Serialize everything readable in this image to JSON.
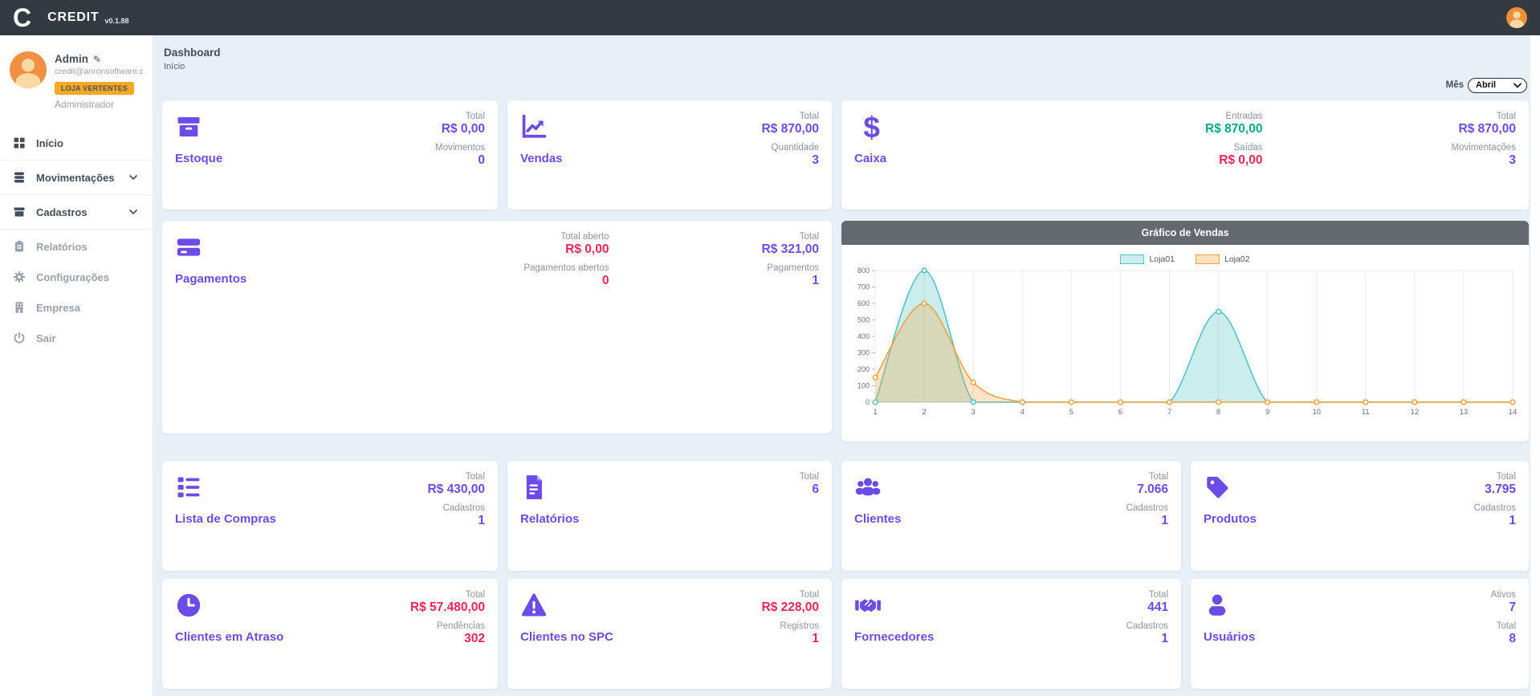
{
  "colors": {
    "accent": "#6b4ce6",
    "green": "#00ab84",
    "red": "#ee2757",
    "topbar": "#343a42",
    "badge": "#f7a825",
    "chart-header": "#63696f"
  },
  "topbar": {
    "logo": "C",
    "brand": "CREDIT",
    "version": "v0.1.88"
  },
  "sidebar": {
    "user": {
      "name": "Admin",
      "email": "credit@anronsoftware.co...",
      "badge": "LOJA VERTENTES",
      "role": "Administrador"
    },
    "menu": [
      {
        "label": "Início",
        "icon": "grid-icon"
      },
      {
        "label": "Movimentações",
        "icon": "database-icon",
        "chevron": true
      },
      {
        "label": "Cadastros",
        "icon": "archive-icon",
        "chevron": true
      },
      {
        "label": "Relatórios",
        "icon": "clipboard-icon"
      },
      {
        "label": "Configurações",
        "icon": "gear-icon"
      },
      {
        "label": "Empresa",
        "icon": "building-icon"
      },
      {
        "label": "Sair",
        "icon": "power-icon"
      }
    ]
  },
  "header": {
    "title": "Dashboard",
    "breadcrumb": "Início",
    "month_label": "Mês",
    "month_value": "Abril"
  },
  "cards": {
    "estoque": {
      "title": "Estoque",
      "icon": "box-icon",
      "stats": [
        {
          "label": "Total",
          "value": "R$ 0,00",
          "tone": "purple"
        },
        {
          "label": "Movimentos",
          "value": "0",
          "tone": "purple"
        }
      ]
    },
    "vendas": {
      "title": "Vendas",
      "icon": "chart-line-icon",
      "stats": [
        {
          "label": "Total",
          "value": "R$ 870,00",
          "tone": "purple"
        },
        {
          "label": "Quantidade",
          "value": "3",
          "tone": "purple"
        }
      ]
    },
    "caixa": {
      "title": "Caixa",
      "icon": "dollar-icon",
      "col1": [
        {
          "label": "Entradas",
          "value": "R$ 870,00",
          "tone": "green"
        },
        {
          "label": "Saídas",
          "value": "R$ 0,00",
          "tone": "red"
        }
      ],
      "col2": [
        {
          "label": "Total",
          "value": "R$ 870,00",
          "tone": "purple"
        },
        {
          "label": "Movimentações",
          "value": "3",
          "tone": "purple"
        }
      ]
    },
    "pagamentos": {
      "title": "Pagamentos",
      "icon": "credit-card-icon",
      "col1": [
        {
          "label": "Total aberto",
          "value": "R$ 0,00",
          "tone": "red"
        },
        {
          "label": "Pagamentos abertos",
          "value": "0",
          "tone": "red"
        }
      ],
      "col2": [
        {
          "label": "Total",
          "value": "R$ 321,00",
          "tone": "purple"
        },
        {
          "label": "Pagamentos",
          "value": "1",
          "tone": "purple"
        }
      ]
    },
    "lista_compras": {
      "title": "Lista de Compras",
      "icon": "list-icon",
      "stats": [
        {
          "label": "Total",
          "value": "R$ 430,00",
          "tone": "purple"
        },
        {
          "label": "Cadastros",
          "value": "1",
          "tone": "purple"
        }
      ]
    },
    "relatorios": {
      "title": "Relatórios",
      "icon": "file-icon",
      "stats": [
        {
          "label": "Total",
          "value": "6",
          "tone": "purple"
        }
      ]
    },
    "clientes": {
      "title": "Clientes",
      "icon": "users-icon",
      "stats": [
        {
          "label": "Total",
          "value": "7.066",
          "tone": "purple"
        },
        {
          "label": "Cadastros",
          "value": "1",
          "tone": "purple"
        }
      ]
    },
    "produtos": {
      "title": "Produtos",
      "icon": "tag-icon",
      "stats": [
        {
          "label": "Total",
          "value": "3.795",
          "tone": "purple"
        },
        {
          "label": "Cadastros",
          "value": "1",
          "tone": "purple"
        }
      ]
    },
    "clientes_atraso": {
      "title": "Clientes em Atraso",
      "icon": "clock-icon",
      "stats": [
        {
          "label": "Total",
          "value": "R$ 57.480,00",
          "tone": "red"
        },
        {
          "label": "Pendências",
          "value": "302",
          "tone": "red"
        }
      ]
    },
    "clientes_spc": {
      "title": "Clientes no SPC",
      "icon": "warning-icon",
      "stats": [
        {
          "label": "Total",
          "value": "R$ 228,00",
          "tone": "red"
        },
        {
          "label": "Registros",
          "value": "1",
          "tone": "red"
        }
      ]
    },
    "fornecedores": {
      "title": "Fornecedores",
      "icon": "handshake-icon",
      "stats": [
        {
          "label": "Total",
          "value": "441",
          "tone": "purple"
        },
        {
          "label": "Cadastros",
          "value": "1",
          "tone": "purple"
        }
      ]
    },
    "usuarios": {
      "title": "Usuários",
      "icon": "user-icon",
      "stats": [
        {
          "label": "Ativos",
          "value": "7",
          "tone": "purple"
        },
        {
          "label": "Total",
          "value": "8",
          "tone": "purple"
        }
      ]
    }
  },
  "chart_data": {
    "type": "area",
    "title": "Gráfico de Vendas",
    "x": [
      1,
      2,
      3,
      4,
      5,
      6,
      7,
      8,
      9,
      10,
      11,
      12,
      13,
      14
    ],
    "series": [
      {
        "name": "Loja01",
        "color": "#56c2c2",
        "fill": "rgba(86,194,194,0.30)",
        "legend_fill": "#cdeeee",
        "values": [
          0,
          800,
          0,
          0,
          0,
          0,
          0,
          550,
          0,
          0,
          0,
          0,
          0,
          0
        ]
      },
      {
        "name": "Loja02",
        "color": "#f2a444",
        "fill": "rgba(242,164,68,0.30)",
        "legend_fill": "#fce3bd",
        "values": [
          150,
          600,
          120,
          0,
          0,
          0,
          0,
          0,
          0,
          0,
          0,
          0,
          0,
          0
        ]
      }
    ],
    "ylim": [
      0,
      800
    ],
    "yticks": [
      0,
      100,
      200,
      300,
      400,
      500,
      600,
      700,
      800
    ],
    "legend_position": "top",
    "grid": "vertical",
    "smooth": true
  }
}
